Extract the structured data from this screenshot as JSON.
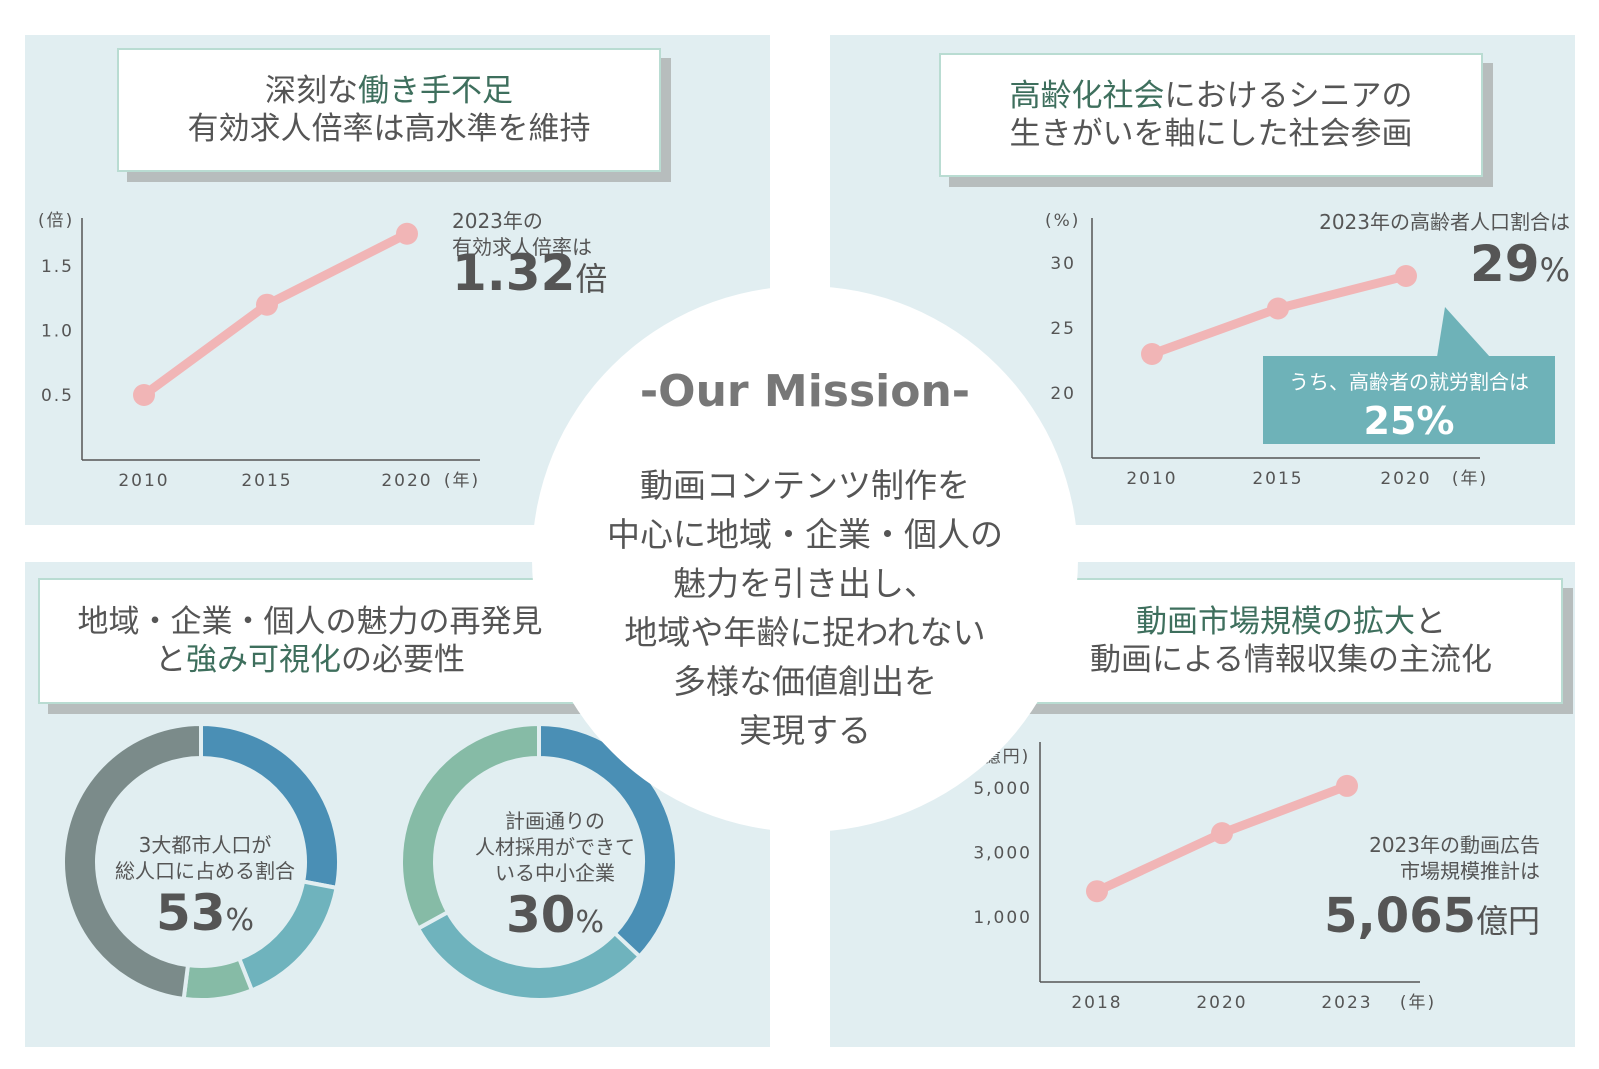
{
  "colors": {
    "panel_bg": "#e1eef1",
    "line": "#f1b5b6",
    "accent_green": "#3e6f5d",
    "callout": "#6eb2b8"
  },
  "mission": {
    "heading": "-Our Mission-",
    "lines": [
      "動画コンテンツ制作を",
      "中心に地域・企業・個人の",
      "魅力を引き出し、",
      "地域や年齢に捉われない",
      "多様な価値創出を",
      "実現する"
    ]
  },
  "panel_tl": {
    "title1_a": "深刻な",
    "title1_b": "働き手不足",
    "title2": "有効求人倍率は高水準を維持",
    "ann1": "2023年の",
    "ann2": "有効求人倍率は",
    "big_value": "1.32",
    "big_unit": "倍"
  },
  "panel_tr": {
    "title1_a": "高齢化社会",
    "title1_b": "におけるシニアの",
    "title2": "生きがいを軸にした社会参画",
    "ann1": "2023年の高齢者人口割合は",
    "big_value": "29",
    "big_unit": "%",
    "callout_text": "うち、高齢者の就労割合は",
    "callout_value": "25%"
  },
  "panel_bl": {
    "title1": "地域・企業・個人の魅力の再発見",
    "title2_a": "と",
    "title2_b": "強み可視化",
    "title2_c": "の必要性",
    "donut1_l1": "3大都市人口が",
    "donut1_l2": "総人口に占める割合",
    "donut1_value": "53",
    "donut1_unit": "%",
    "donut2_l1": "計画通りの",
    "donut2_l2": "人材採用ができて",
    "donut2_l3": "いる中小企業",
    "donut2_value": "30",
    "donut2_unit": "%"
  },
  "panel_br": {
    "title1_a": "動画市場規模の拡大",
    "title1_b": "と",
    "title2": "動画による情報収集の主流化",
    "ann1": "2023年の動画広告",
    "ann2": "市場規模推計は",
    "big_value": "5,065",
    "big_unit": "億円"
  },
  "chart_data": [
    {
      "type": "line",
      "ylabel": "(倍)",
      "xlabel": "(年)",
      "x": [
        "2010",
        "2015",
        "2020"
      ],
      "values": [
        0.5,
        1.2,
        1.75
      ],
      "yticks": [
        "1.5",
        "1.0",
        "0.5"
      ],
      "ytick_values": [
        1.5,
        1.0,
        0.5
      ],
      "ylim": [
        0,
        2.0
      ]
    },
    {
      "type": "line",
      "ylabel": "(%)",
      "xlabel": "(年)",
      "x": [
        "2010",
        "2015",
        "2020"
      ],
      "values": [
        23,
        26.5,
        29
      ],
      "yticks": [
        "30",
        "25",
        "20"
      ],
      "ytick_values": [
        30,
        25,
        20
      ],
      "ylim": [
        15,
        33
      ]
    },
    {
      "type": "line",
      "ylabel": "(億円)",
      "xlabel": "(年)",
      "x": [
        "2018",
        "2020",
        "2023"
      ],
      "values": [
        1800,
        3600,
        5065
      ],
      "yticks": [
        "5,000",
        "3,000",
        "1,000"
      ],
      "ytick_values": [
        5000,
        3000,
        1000
      ],
      "ylim": [
        -1000,
        6000
      ]
    },
    {
      "type": "pie",
      "slices": [
        0.28,
        0.16,
        0.08,
        0.48
      ],
      "colors": [
        "#4a8fb5",
        "#6fb3bd",
        "#86bba6",
        "#7b8b8a"
      ]
    },
    {
      "type": "pie",
      "slices": [
        0.37,
        0.3,
        0.33
      ],
      "colors": [
        "#4a8fb5",
        "#6fb3bd",
        "#86bba6"
      ]
    }
  ]
}
